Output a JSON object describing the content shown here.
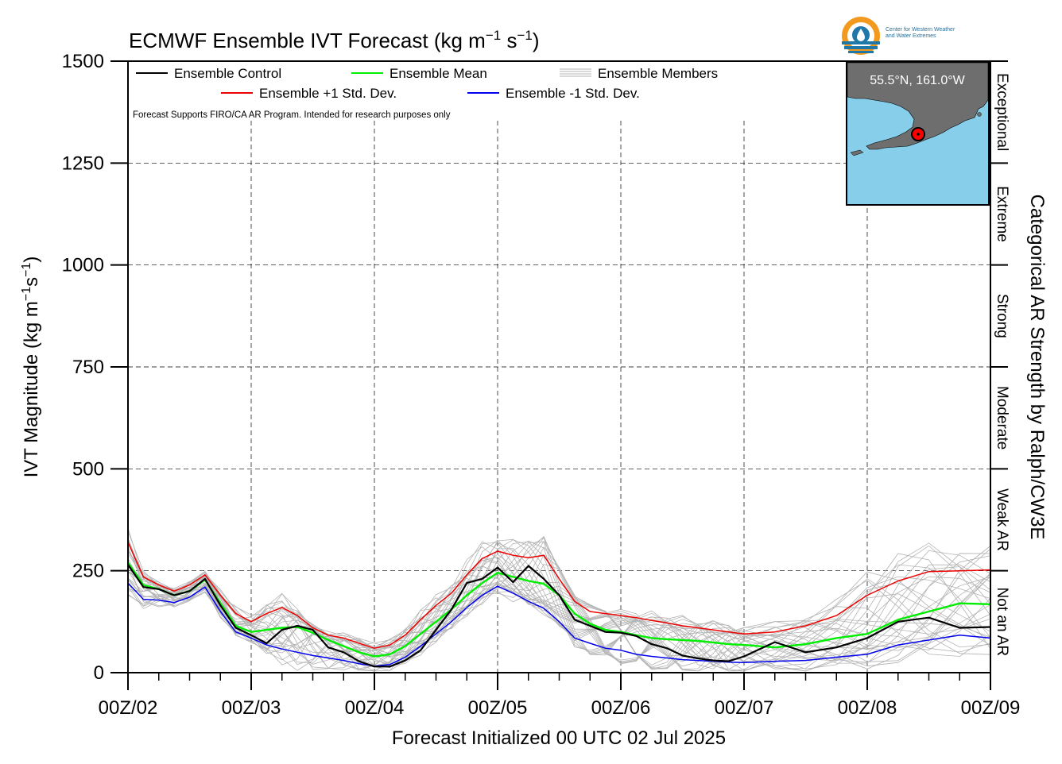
{
  "title_prefix": "ECMWF Ensemble IVT Forecast (kg m",
  "title_mid": " s",
  "title_suffix": ")",
  "title_exp": "−1",
  "ylabel_prefix": "IVT Magnitude (kg m",
  "ylabel_mid": "s",
  "ylabel_suffix": ")",
  "ylabel_exp": "−1",
  "xlabel": "Forecast Initialized 00 UTC 02 Jul 2025",
  "right_label": "Categorical AR Strength by Ralph/CW3E",
  "disclaimer": "Forecast Supports FIRO/CA AR Program. Intended for research purposes only",
  "location": "55.5°N, 161.0°W",
  "logo": {
    "line1": "Center for Western Weather",
    "line2": "and Water Extremes",
    "colors": {
      "orange": "#f39a1e",
      "blue": "#1f78a8"
    }
  },
  "legend": {
    "control": "Ensemble Control",
    "mean": "Ensemble Mean",
    "members": "Ensemble Members",
    "plus": "Ensemble +1 Std. Dev.",
    "minus": "Ensemble -1 Std. Dev."
  },
  "categories": [
    {
      "label": "Not an AR",
      "range": [
        0,
        250
      ]
    },
    {
      "label": "Weak AR",
      "range": [
        250,
        500
      ]
    },
    {
      "label": "Moderate",
      "range": [
        500,
        750
      ]
    },
    {
      "label": "Strong",
      "range": [
        750,
        1000
      ]
    },
    {
      "label": "Extreme",
      "range": [
        1000,
        1250
      ]
    },
    {
      "label": "Exceptional",
      "range": [
        1250,
        1500
      ]
    }
  ],
  "colors": {
    "control": "#000000",
    "mean": "#00ee00",
    "plus": "#ee0000",
    "minus": "#0000ee",
    "members": "#b3b3b3",
    "inset_ocean": "#87ceeb",
    "inset_land": "#6e6e6e",
    "marker": "#ff0000"
  },
  "chart_data": {
    "type": "line",
    "title": "ECMWF Ensemble IVT Forecast (kg m−1 s−1)",
    "xlabel": "Forecast Initialized 00 UTC 02 Jul 2025",
    "ylabel": "IVT Magnitude (kg m−1s−1)",
    "x_tick_labels": [
      "00Z/02",
      "00Z/03",
      "00Z/04",
      "00Z/05",
      "00Z/06",
      "00Z/07",
      "00Z/08",
      "00Z/09"
    ],
    "x_unit": "hours since 00Z/02",
    "xlim": [
      0,
      168
    ],
    "ylim": [
      0,
      1500
    ],
    "yticks": [
      0,
      250,
      500,
      750,
      1000,
      1250,
      1500
    ],
    "grid": true,
    "legend_position": "top",
    "series": [
      {
        "name": "Ensemble Control",
        "x": [
          0,
          3,
          6,
          9,
          12,
          15,
          18,
          21,
          24,
          27,
          30,
          33,
          36,
          39,
          42,
          45,
          48,
          51,
          54,
          57,
          60,
          63,
          66,
          69,
          72,
          75,
          78,
          81,
          84,
          87,
          90,
          93,
          96,
          99,
          102,
          105,
          108,
          111,
          114,
          117,
          120,
          126,
          132,
          138,
          144,
          150,
          156,
          162,
          168
        ],
        "values": [
          265,
          210,
          205,
          190,
          200,
          230,
          165,
          110,
          92,
          72,
          105,
          115,
          105,
          62,
          50,
          28,
          15,
          15,
          30,
          55,
          105,
          155,
          220,
          230,
          258,
          222,
          262,
          230,
          190,
          130,
          115,
          100,
          98,
          90,
          70,
          60,
          42,
          35,
          30,
          28,
          40,
          75,
          50,
          62,
          85,
          125,
          135,
          110,
          112
        ]
      },
      {
        "name": "Ensemble Mean",
        "x": [
          0,
          3,
          6,
          9,
          12,
          15,
          18,
          21,
          24,
          27,
          30,
          33,
          36,
          39,
          42,
          45,
          48,
          51,
          54,
          57,
          60,
          63,
          66,
          69,
          72,
          75,
          78,
          81,
          84,
          87,
          90,
          93,
          96,
          99,
          102,
          105,
          108,
          111,
          114,
          117,
          120,
          126,
          132,
          138,
          144,
          150,
          156,
          162,
          168
        ],
        "values": [
          270,
          215,
          205,
          190,
          200,
          228,
          170,
          115,
          100,
          105,
          110,
          112,
          98,
          80,
          65,
          50,
          40,
          45,
          65,
          95,
          125,
          155,
          190,
          220,
          245,
          235,
          225,
          218,
          190,
          145,
          120,
          105,
          100,
          92,
          85,
          82,
          80,
          78,
          74,
          70,
          68,
          62,
          70,
          85,
          95,
          130,
          150,
          170,
          168
        ]
      },
      {
        "name": "Ensemble +1 Std. Dev.",
        "x": [
          0,
          3,
          6,
          9,
          12,
          15,
          18,
          21,
          24,
          27,
          30,
          33,
          36,
          39,
          42,
          45,
          48,
          51,
          54,
          57,
          60,
          63,
          66,
          69,
          72,
          75,
          78,
          81,
          84,
          87,
          90,
          93,
          96,
          99,
          102,
          105,
          108,
          111,
          114,
          117,
          120,
          126,
          132,
          138,
          144,
          150,
          156,
          162,
          168
        ],
        "values": [
          320,
          235,
          215,
          200,
          215,
          240,
          190,
          145,
          125,
          145,
          160,
          140,
          110,
          92,
          85,
          72,
          60,
          68,
          92,
          130,
          165,
          195,
          240,
          280,
          298,
          288,
          282,
          288,
          230,
          175,
          150,
          145,
          140,
          135,
          128,
          122,
          115,
          110,
          105,
          100,
          95,
          100,
          115,
          140,
          190,
          225,
          248,
          250,
          252
        ]
      },
      {
        "name": "Ensemble -1 Std. Dev.",
        "x": [
          0,
          3,
          6,
          9,
          12,
          15,
          18,
          21,
          24,
          27,
          30,
          33,
          36,
          39,
          42,
          45,
          48,
          51,
          54,
          57,
          60,
          63,
          66,
          69,
          72,
          75,
          78,
          81,
          84,
          87,
          90,
          93,
          96,
          99,
          102,
          105,
          108,
          111,
          114,
          117,
          120,
          126,
          132,
          138,
          144,
          150,
          156,
          162,
          168
        ],
        "values": [
          220,
          180,
          178,
          172,
          185,
          210,
          150,
          100,
          85,
          68,
          58,
          50,
          42,
          36,
          30,
          22,
          16,
          20,
          38,
          65,
          95,
          125,
          160,
          190,
          212,
          195,
          175,
          158,
          125,
          85,
          72,
          60,
          55,
          45,
          40,
          36,
          32,
          30,
          28,
          26,
          25,
          28,
          30,
          38,
          45,
          68,
          80,
          92,
          85
        ]
      }
    ],
    "ensemble_members": {
      "name": "Ensemble Members",
      "count": 30
    }
  }
}
